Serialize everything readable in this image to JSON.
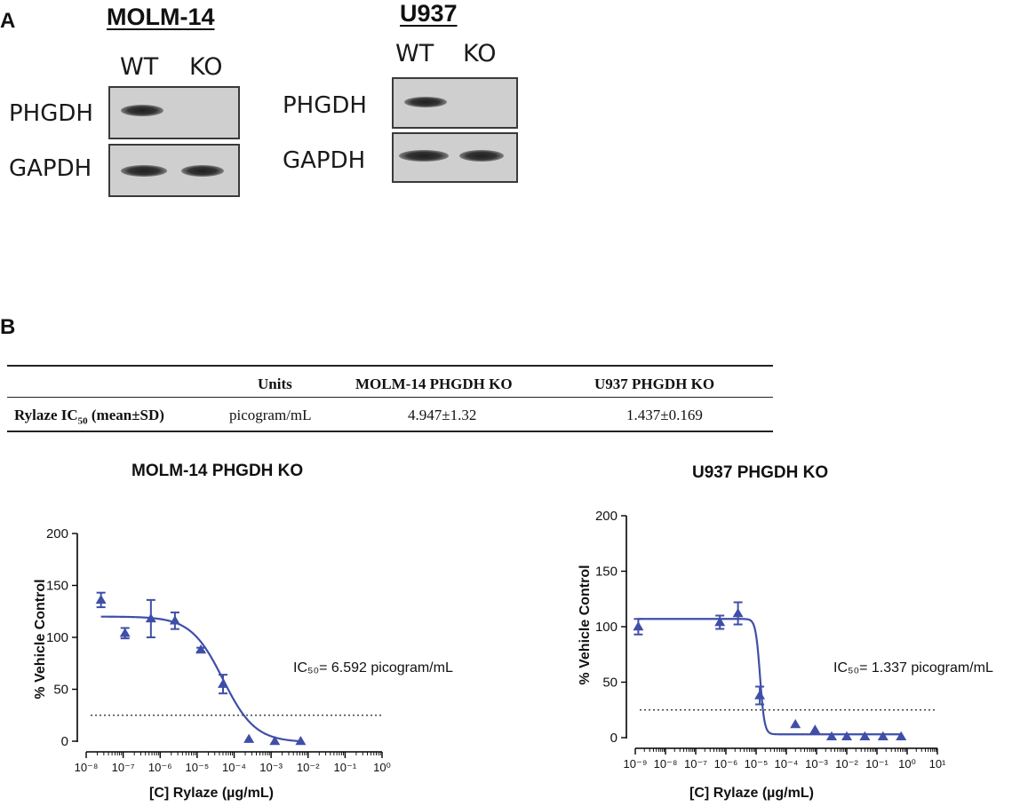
{
  "panel_a": {
    "letter": "A",
    "blots": [
      {
        "cell_line": "MOLM-14",
        "lanes": [
          "WT",
          "KO"
        ],
        "proteins": [
          "PHGDH",
          "GAPDH"
        ]
      },
      {
        "cell_line": "U937",
        "lanes": [
          "WT",
          "KO"
        ],
        "proteins": [
          "PHGDH",
          "GAPDH"
        ]
      }
    ]
  },
  "panel_b": {
    "letter": "B",
    "table": {
      "headers": [
        "",
        "Units",
        "MOLM-14 PHGDH KO",
        "U937 PHGDH KO"
      ],
      "row_label_main": "Rylaze IC",
      "row_label_sub": "50",
      "row_label_tail": " (mean±SD)",
      "units": "picogram/mL",
      "molm14": "4.947±1.32",
      "u937": "1.437±0.169"
    }
  },
  "chart_data": [
    {
      "type": "scatter",
      "title": "MOLM-14 PHGDH KO",
      "xlabel": "[C] Rylaze (µg/mL)",
      "ylabel": "% Vehicle Control",
      "x_scale": "log",
      "xlim_exp": [
        -8,
        0
      ],
      "ylim": [
        0,
        200
      ],
      "yticks": [
        0,
        50,
        100,
        150,
        200
      ],
      "x_tick_labels": [
        "10⁻⁸",
        "10⁻⁷",
        "10⁻⁶",
        "10⁻⁵",
        "10⁻⁴",
        "10⁻³",
        "10⁻²",
        "10⁻¹",
        "10⁰"
      ],
      "annotation": "IC₅₀= 6.592 picogram/mL",
      "reference_line_y": 25,
      "points": [
        {
          "x_exp": -7.6,
          "y": 136,
          "err": 7
        },
        {
          "x_exp": -6.95,
          "y": 104,
          "err": 5
        },
        {
          "x_exp": -6.25,
          "y": 118,
          "err": 18
        },
        {
          "x_exp": -5.6,
          "y": 116,
          "err": 8
        },
        {
          "x_exp": -4.9,
          "y": 88,
          "err": 2
        },
        {
          "x_exp": -4.3,
          "y": 55,
          "err": 9
        },
        {
          "x_exp": -3.6,
          "y": 2,
          "err": 0
        },
        {
          "x_exp": -2.9,
          "y": 0,
          "err": 0
        },
        {
          "x_exp": -2.2,
          "y": 0,
          "err": 0
        }
      ],
      "fit": {
        "top": 120,
        "bottom": -1,
        "logIC50": -4.3,
        "hill": 1.0
      },
      "color": "#3f4fa8"
    },
    {
      "type": "scatter",
      "title": "U937 PHGDH KO",
      "xlabel": "[C] Rylaze (µg/mL)",
      "ylabel": "% Vehicle Control",
      "x_scale": "log",
      "xlim_exp": [
        -9,
        1
      ],
      "ylim": [
        0,
        200
      ],
      "yticks": [
        0,
        50,
        100,
        150,
        200
      ],
      "x_tick_labels": [
        "10⁻⁹",
        "10⁻⁸",
        "10⁻⁷",
        "10⁻⁶",
        "10⁻⁵",
        "10⁻⁴",
        "10⁻³",
        "10⁻²",
        "10⁻¹",
        "10⁰",
        "10¹"
      ],
      "annotation": "IC₅₀= 1.337 picogram/mL",
      "reference_line_y": 25,
      "points": [
        {
          "x_exp": -8.9,
          "y": 100,
          "err": 7
        },
        {
          "x_exp": -6.2,
          "y": 104,
          "err": 6
        },
        {
          "x_exp": -5.6,
          "y": 112,
          "err": 10
        },
        {
          "x_exp": -4.88,
          "y": 38,
          "err": 8
        },
        {
          "x_exp": -3.7,
          "y": 12,
          "err": 0
        },
        {
          "x_exp": -3.05,
          "y": 7,
          "err": 0
        },
        {
          "x_exp": -2.5,
          "y": 1,
          "err": 0
        },
        {
          "x_exp": -2.0,
          "y": 1,
          "err": 0
        },
        {
          "x_exp": -1.4,
          "y": 1,
          "err": 0
        },
        {
          "x_exp": -0.8,
          "y": 1,
          "err": 0
        },
        {
          "x_exp": -0.2,
          "y": 1,
          "err": 0
        }
      ],
      "fit": {
        "top": 107,
        "bottom": 3,
        "logIC50": -4.87,
        "hill": 6.0
      },
      "color": "#3f4fa8"
    }
  ]
}
